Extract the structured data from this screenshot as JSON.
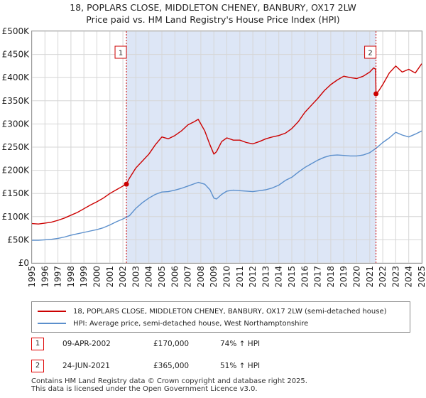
{
  "title_line1": "18, POPLARS CLOSE, MIDDLETON CHENEY, BANBURY, OX17 2LW",
  "title_line2": "Price paid vs. HM Land Registry's House Price Index (HPI)",
  "colors": {
    "price": "#cc0000",
    "hpi": "#5b8fcc",
    "shade": "#dde6f6",
    "marker": "#cc0000",
    "grid": "#d6d6d6"
  },
  "chart_data": {
    "type": "line",
    "xlim": [
      1995,
      2025
    ],
    "ylim": [
      0,
      500000
    ],
    "yticks": [
      0,
      50000,
      100000,
      150000,
      200000,
      250000,
      300000,
      350000,
      400000,
      450000,
      500000
    ],
    "ytick_labels": [
      "£0",
      "£50K",
      "£100K",
      "£150K",
      "£200K",
      "£250K",
      "£300K",
      "£350K",
      "£400K",
      "£450K",
      "£500K"
    ],
    "xticks": [
      "1995",
      "1996",
      "1997",
      "1998",
      "1999",
      "2000",
      "2001",
      "2002",
      "2003",
      "2004",
      "2005",
      "2006",
      "2007",
      "2008",
      "2009",
      "2010",
      "2011",
      "2012",
      "2013",
      "2014",
      "2015",
      "2016",
      "2017",
      "2018",
      "2019",
      "2020",
      "2021",
      "2022",
      "2023",
      "2024",
      "2025"
    ],
    "shaded_range": [
      2002.27,
      2021.48
    ],
    "series": [
      {
        "name": "18, POPLARS CLOSE, MIDDLETON CHENEY, BANBURY, OX17 2LW (semi-detached house)",
        "x": [
          1995.0,
          1995.5,
          1996.0,
          1996.5,
          1997.0,
          1997.5,
          1998.0,
          1998.5,
          1999.0,
          1999.5,
          2000.0,
          2000.5,
          2001.0,
          2001.5,
          2002.0,
          2002.27,
          2002.5,
          2003.0,
          2003.5,
          2004.0,
          2004.5,
          2005.0,
          2005.5,
          2006.0,
          2006.5,
          2007.0,
          2007.5,
          2007.8,
          2008.3,
          2008.7,
          2009.0,
          2009.2,
          2009.6,
          2010.0,
          2010.5,
          2011.0,
          2011.5,
          2012.0,
          2012.5,
          2013.0,
          2013.5,
          2014.0,
          2014.5,
          2015.0,
          2015.5,
          2016.0,
          2016.5,
          2017.0,
          2017.5,
          2018.0,
          2018.5,
          2019.0,
          2019.5,
          2020.0,
          2020.5,
          2021.0,
          2021.3,
          2021.45,
          2021.48,
          2021.7,
          2022.0,
          2022.5,
          2023.0,
          2023.5,
          2024.0,
          2024.5,
          2025.0
        ],
        "values": [
          85000,
          84000,
          86000,
          88000,
          92000,
          97000,
          103000,
          109000,
          117000,
          125000,
          132000,
          140000,
          150000,
          158000,
          166000,
          170000,
          183000,
          205000,
          220000,
          235000,
          255000,
          272000,
          268000,
          275000,
          285000,
          298000,
          305000,
          310000,
          285000,
          255000,
          235000,
          240000,
          262000,
          270000,
          265000,
          265000,
          260000,
          257000,
          262000,
          268000,
          272000,
          275000,
          280000,
          290000,
          305000,
          325000,
          340000,
          355000,
          372000,
          385000,
          395000,
          403000,
          400000,
          398000,
          403000,
          412000,
          421000,
          418000,
          365000,
          372000,
          385000,
          410000,
          425000,
          412000,
          418000,
          410000,
          430000
        ]
      },
      {
        "name": "HPI: Average price, semi-detached house, West Northamptonshire",
        "x": [
          1995.0,
          1995.5,
          1996.0,
          1996.5,
          1997.0,
          1997.5,
          1998.0,
          1998.5,
          1999.0,
          1999.5,
          2000.0,
          2000.5,
          2001.0,
          2001.5,
          2002.0,
          2002.5,
          2003.0,
          2003.5,
          2004.0,
          2004.5,
          2005.0,
          2005.5,
          2006.0,
          2006.5,
          2007.0,
          2007.5,
          2007.8,
          2008.3,
          2008.7,
          2009.0,
          2009.2,
          2009.6,
          2010.0,
          2010.5,
          2011.0,
          2011.5,
          2012.0,
          2012.5,
          2013.0,
          2013.5,
          2014.0,
          2014.5,
          2015.0,
          2015.5,
          2016.0,
          2016.5,
          2017.0,
          2017.5,
          2018.0,
          2018.5,
          2019.0,
          2019.5,
          2020.0,
          2020.5,
          2021.0,
          2021.5,
          2022.0,
          2022.5,
          2023.0,
          2023.5,
          2024.0,
          2024.5,
          2025.0
        ],
        "values": [
          49000,
          49000,
          50000,
          51000,
          53000,
          56000,
          60000,
          63000,
          66000,
          69000,
          72000,
          76000,
          82000,
          89000,
          95000,
          102000,
          118000,
          130000,
          140000,
          148000,
          153000,
          154000,
          157000,
          161000,
          166000,
          171000,
          174000,
          170000,
          158000,
          140000,
          138000,
          148000,
          155000,
          157000,
          156000,
          155000,
          154000,
          156000,
          158000,
          162000,
          168000,
          178000,
          185000,
          196000,
          206000,
          214000,
          222000,
          228000,
          232000,
          233000,
          232000,
          231000,
          231000,
          233000,
          238000,
          248000,
          260000,
          270000,
          282000,
          276000,
          272000,
          278000,
          285000
        ]
      }
    ],
    "annotations": [
      {
        "label": "1",
        "x": 2002.27,
        "value": 170000
      },
      {
        "label": "2",
        "x": 2021.48,
        "value": 365000
      }
    ]
  },
  "legend": {
    "series1": "18, POPLARS CLOSE, MIDDLETON CHENEY, BANBURY, OX17 2LW (semi-detached house)",
    "series2": "HPI: Average price, semi-detached house, West Northamptonshire"
  },
  "sales": [
    {
      "num": "1",
      "date": "09-APR-2002",
      "price": "£170,000",
      "hpi": "74% ↑ HPI"
    },
    {
      "num": "2",
      "date": "24-JUN-2021",
      "price": "£365,000",
      "hpi": "51% ↑ HPI"
    }
  ],
  "footer_line1": "Contains HM Land Registry data © Crown copyright and database right 2025.",
  "footer_line2": "This data is licensed under the Open Government Licence v3.0."
}
